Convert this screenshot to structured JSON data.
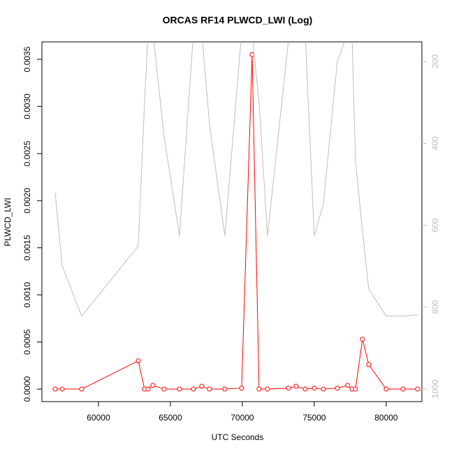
{
  "chart_data": {
    "type": "line",
    "title": "ORCAS RF14 PLWCD_LWI (Log)",
    "x_label": "UTC Seconds",
    "y_label": "PLWCD_LWI",
    "x": [
      56990,
      57476,
      58835,
      62767,
      63204,
      63447,
      63786,
      64563,
      65631,
      66602,
      67184,
      67718,
      68786,
      69951,
      70680,
      71165,
      71748,
      73204,
      73738,
      74369,
      75000,
      75631,
      76602,
      77330,
      77621,
      77864,
      78350,
      78786,
      80000,
      81165,
      82184
    ],
    "series": [
      {
        "color": "#ff0000",
        "axis": "y",
        "markers": true,
        "values": [
          0,
          0,
          0,
          0.0003,
          0,
          0,
          4e-05,
          0,
          0,
          0,
          3e-05,
          0,
          0,
          1e-05,
          0.00355,
          0,
          0,
          1e-05,
          3e-05,
          0,
          1e-05,
          0,
          1e-05,
          4e-05,
          0,
          0,
          0.00053,
          0.00026,
          0,
          0,
          0
        ]
      },
      {
        "color": "#bebebe",
        "axis": "y2",
        "markers": false,
        "values": [
          520,
          699,
          822,
          651,
          300,
          130,
          130,
          383,
          626,
          130,
          130,
          354,
          626,
          130,
          130,
          300,
          626,
          150,
          130,
          130,
          626,
          549,
          200,
          130,
          130,
          443,
          614,
          756,
          822,
          822,
          819
        ]
      }
    ],
    "xlim": [
      56070,
      82480
    ],
    "xticks": [
      60000,
      65000,
      70000,
      75000,
      80000
    ],
    "ylim": [
      -0.000133,
      0.003685
    ],
    "yticks": [
      {
        "value": 0,
        "label": "0.0000"
      },
      0.0005,
      {
        "value": 0.001,
        "label": "0.0010"
      },
      0.0015,
      {
        "value": 0.002,
        "label": "0.0020"
      },
      0.0025,
      {
        "value": 0.003,
        "label": "0.0030"
      },
      0.0035
    ],
    "y2lim": [
      1031,
      152
    ],
    "y2ticks": [
      200,
      400,
      600,
      800,
      1000
    ],
    "y2_color": "#bebebe"
  }
}
